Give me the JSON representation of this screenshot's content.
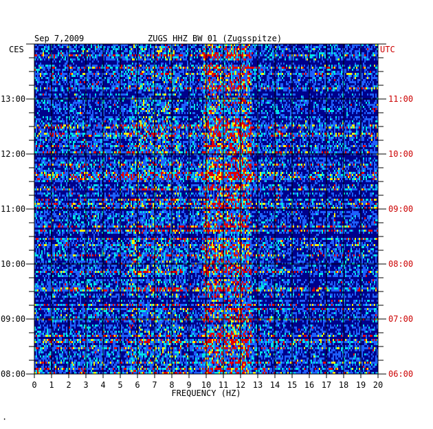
{
  "header": {
    "date": "Sep 7,2009",
    "station": "ZUGS HHZ BW 01 (Zugsspitze)",
    "left_tz": "CES",
    "right_tz": "UTC"
  },
  "footer": {
    "mark": "·"
  },
  "chart_data": {
    "type": "heatmap",
    "xlabel": "FREQUENCY (HZ)",
    "x_ticks": [
      "0",
      "1",
      "2",
      "3",
      "4",
      "5",
      "6",
      "7",
      "8",
      "9",
      "10",
      "11",
      "12",
      "13",
      "14",
      "15",
      "16",
      "17",
      "18",
      "19",
      "20"
    ],
    "xlim": [
      0,
      20
    ],
    "left_time_labels": [
      "13:00",
      "12:00",
      "11:00",
      "10:00",
      "09:00",
      "08:00"
    ],
    "right_time_labels": [
      "11:00",
      "10:00",
      "09:00",
      "08:00",
      "07:00",
      "06:00"
    ],
    "time_range_hours_ces": [
      8.0,
      14.0
    ],
    "colors": {
      "low": "#00008b",
      "mid": "#1e60ff",
      "cyan": "#00e5e5",
      "yellow": "#ffee00",
      "high": "#e00000",
      "grid": "#000000",
      "utc_label": "#cc0000"
    }
  }
}
